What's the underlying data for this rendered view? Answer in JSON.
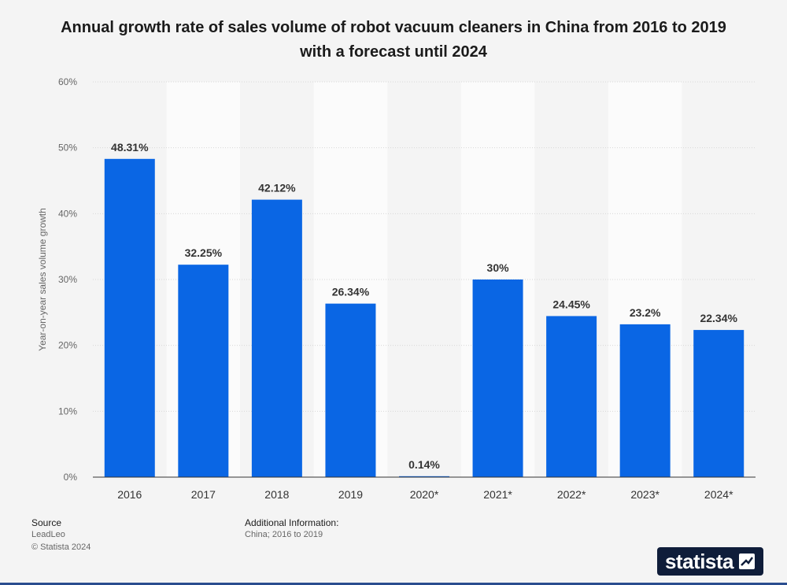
{
  "chart_data": {
    "type": "bar",
    "title": "Annual growth rate of sales volume of robot vacuum cleaners in China from 2016 to 2019 with a forecast until 2024",
    "ylabel": "Year-on-year sales volume growth",
    "xlabel": "",
    "categories": [
      "2016",
      "2017",
      "2018",
      "2019",
      "2020*",
      "2021*",
      "2022*",
      "2023*",
      "2024*"
    ],
    "values": [
      48.31,
      32.25,
      42.12,
      26.34,
      0.14,
      30,
      24.45,
      23.2,
      22.34
    ],
    "value_labels": [
      "48.31%",
      "32.25%",
      "42.12%",
      "26.34%",
      "0.14%",
      "30%",
      "24.45%",
      "23.2%",
      "22.34%"
    ],
    "ylim": [
      0,
      60
    ],
    "yticks": [
      "0%",
      "10%",
      "20%",
      "30%",
      "40%",
      "50%",
      "60%"
    ],
    "bar_color": "#0a66e4",
    "grid": true,
    "alternating_column_bands": true
  },
  "footer": {
    "source_heading": "Source",
    "source_value": "LeadLeo",
    "copyright": "© Statista 2024",
    "additional_heading": "Additional Information:",
    "additional_value": "China; 2016 to 2019",
    "brand": "statista"
  }
}
